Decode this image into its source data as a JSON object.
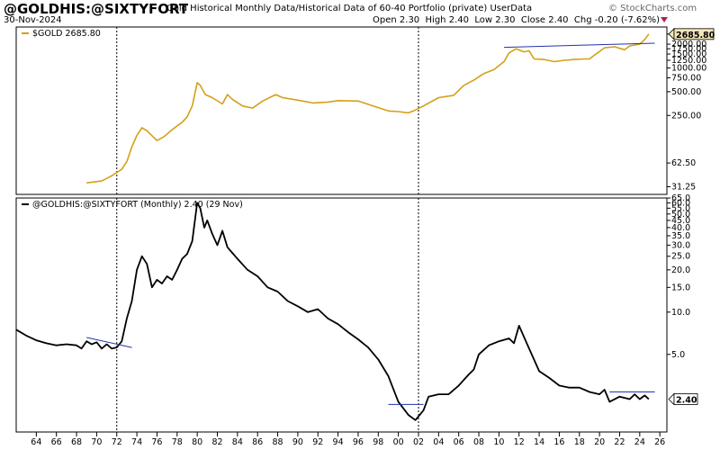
{
  "header": {
    "ticker": "@GOLDHIS:@SIXTYFORT",
    "description": "Gold Historical Monthly Data/Historical Data of 60-40 Portfolio (private)",
    "source_tag": "UserData",
    "date": "30-Nov-2024",
    "open_label": "Open",
    "open": "2.30",
    "high_label": "High",
    "high": "2.40",
    "low_label": "Low",
    "low": "2.30",
    "close_label": "Close",
    "close": "2.40",
    "chg_label": "Chg",
    "chg": "-0.20 (-7.62%)",
    "brand": "© StockCharts.com"
  },
  "colors": {
    "gold": "#d4a017",
    "ratio": "#000000",
    "trend": "#2233aa",
    "marker": "#000000"
  },
  "chart_data": [
    {
      "type": "line",
      "legend": "$GOLD 2685.80",
      "last_value_label": "2685.80",
      "y_scale": "log",
      "ylim": [
        25,
        3300
      ],
      "y_ticks": [
        "2685.80",
        "2000.00",
        "1750.00",
        "1500.00",
        "1250.00",
        "1000.00",
        "750.00",
        "500.00",
        "250.00",
        "62.50",
        "31.25"
      ],
      "y_tick_values": [
        2685.8,
        2000,
        1750,
        1500,
        1250,
        1000,
        750,
        500,
        250,
        62.5,
        31.25
      ],
      "series": [
        {
          "x": [
            1969.0,
            1970.5,
            1971.5,
            1972.5,
            1973.0,
            1973.5,
            1974.0,
            1974.5,
            1975.0,
            1976.0,
            1976.7,
            1977.5,
            1978.5,
            1979.0,
            1979.5,
            1980.0,
            1980.3,
            1980.8,
            1981.5,
            1982.5,
            1983.0,
            1983.5,
            1984.5,
            1985.5,
            1986.5,
            1987.8,
            1988.5,
            1990.0,
            1991.5,
            1993.0,
            1994.0,
            1996.0,
            1997.5,
            1999.0,
            2000.0,
            2001.0,
            2001.5,
            2002.5,
            2004.0,
            2005.5,
            2006.5,
            2007.5,
            2008.5,
            2009.5,
            2010.5,
            2011.0,
            2011.7,
            2012.5,
            2013.0,
            2013.5,
            2014.5,
            2015.5,
            2016.5,
            2017.5,
            2018.5,
            2019.0,
            2019.5,
            2020.5,
            2021.5,
            2022.5,
            2023.0,
            2023.5,
            2024.0,
            2024.5,
            2024.9
          ],
          "y": [
            35,
            37,
            43,
            52,
            65,
            100,
            140,
            175,
            160,
            120,
            135,
            165,
            205,
            240,
            330,
            650,
            600,
            460,
            420,
            350,
            460,
            400,
            330,
            310,
            380,
            460,
            420,
            390,
            360,
            370,
            385,
            380,
            330,
            285,
            280,
            270,
            285,
            330,
            420,
            450,
            600,
            700,
            850,
            950,
            1200,
            1550,
            1750,
            1600,
            1650,
            1300,
            1280,
            1200,
            1250,
            1280,
            1300,
            1300,
            1450,
            1800,
            1850,
            1700,
            1900,
            1950,
            2000,
            2300,
            2685.8
          ]
        }
      ],
      "trendline": {
        "x": [
          2010.5,
          2025.5
        ],
        "y": [
          1820,
          2060
        ]
      }
    },
    {
      "type": "line",
      "legend": "@GOLDHIS:@SIXTYFORT (Monthly) 2.40 (29 Nov)",
      "last_value_label": "2.40",
      "y_scale": "log",
      "ylim": [
        1.4,
        65
      ],
      "y_ticks": [
        "65.0",
        "60.0",
        "55.0",
        "50.0",
        "45.0",
        "40.0",
        "35.0",
        "30.0",
        "25.0",
        "20.0",
        "15.0",
        "10.0",
        "5.0"
      ],
      "y_tick_values": [
        65,
        60,
        55,
        50,
        45,
        40,
        35,
        30,
        25,
        20,
        15,
        10,
        5
      ],
      "series": [
        {
          "x": [
            1962.0,
            1963.0,
            1964.0,
            1965.0,
            1966.0,
            1967.0,
            1968.0,
            1968.5,
            1969.0,
            1969.5,
            1970.0,
            1970.5,
            1971.0,
            1971.5,
            1972.0,
            1972.5,
            1973.0,
            1973.5,
            1974.0,
            1974.5,
            1975.0,
            1975.5,
            1976.0,
            1976.5,
            1977.0,
            1977.5,
            1978.0,
            1978.5,
            1979.0,
            1979.5,
            1980.0,
            1980.3,
            1980.7,
            1981.0,
            1981.5,
            1982.0,
            1982.5,
            1983.0,
            1984.0,
            1985.0,
            1986.0,
            1987.0,
            1988.0,
            1989.0,
            1990.0,
            1991.0,
            1992.0,
            1993.0,
            1994.0,
            1995.0,
            1996.0,
            1997.0,
            1998.0,
            1999.0,
            2000.0,
            2001.0,
            2001.7,
            2002.5,
            2003.0,
            2004.0,
            2005.0,
            2006.0,
            2007.0,
            2007.5,
            2008.0,
            2009.0,
            2010.0,
            2011.0,
            2011.5,
            2012.0,
            2013.0,
            2014.0,
            2015.0,
            2016.0,
            2017.0,
            2018.0,
            2019.0,
            2020.0,
            2020.5,
            2021.0,
            2022.0,
            2023.0,
            2023.5,
            2024.0,
            2024.5,
            2024.9
          ],
          "y": [
            7.5,
            6.8,
            6.3,
            6.0,
            5.8,
            5.9,
            5.8,
            5.5,
            6.2,
            5.9,
            6.1,
            5.5,
            5.9,
            5.5,
            5.6,
            6.2,
            9.0,
            12,
            20,
            25,
            22,
            15,
            17,
            16,
            18,
            17,
            20,
            24,
            26,
            32,
            60,
            55,
            40,
            45,
            36,
            30,
            38,
            29,
            24,
            20,
            18,
            15,
            14,
            12,
            11,
            10,
            10.5,
            9,
            8.2,
            7.2,
            6.4,
            5.6,
            4.6,
            3.5,
            2.3,
            1.85,
            1.7,
            2.0,
            2.5,
            2.6,
            2.6,
            3.0,
            3.6,
            3.9,
            5.0,
            5.8,
            6.2,
            6.5,
            6.0,
            8.0,
            5.5,
            3.8,
            3.4,
            3.0,
            2.9,
            2.9,
            2.7,
            2.6,
            2.8,
            2.3,
            2.5,
            2.4,
            2.6,
            2.4,
            2.55,
            2.4
          ]
        }
      ],
      "trendlines": [
        {
          "x": [
            1969.0,
            1973.5
          ],
          "y": [
            6.6,
            5.6
          ]
        },
        {
          "x": [
            1999.0,
            2002.5
          ],
          "y": [
            2.2,
            2.2
          ]
        },
        {
          "x": [
            2021.0,
            2025.5
          ],
          "y": [
            2.7,
            2.7
          ]
        }
      ]
    }
  ],
  "x_axis": {
    "ticks": [
      "64",
      "66",
      "68",
      "70",
      "72",
      "74",
      "76",
      "78",
      "80",
      "82",
      "84",
      "86",
      "88",
      "90",
      "92",
      "94",
      "96",
      "98",
      "00",
      "02",
      "04",
      "06",
      "08",
      "10",
      "12",
      "14",
      "16",
      "18",
      "20",
      "22",
      "24",
      "26"
    ],
    "tick_years": [
      1964,
      1966,
      1968,
      1970,
      1972,
      1974,
      1976,
      1978,
      1980,
      1982,
      1984,
      1986,
      1988,
      1990,
      1992,
      1994,
      1996,
      1998,
      2000,
      2002,
      2004,
      2006,
      2008,
      2010,
      2012,
      2014,
      2016,
      2018,
      2020,
      2022,
      2024,
      2026
    ],
    "markers": [
      1972.0,
      2002.0
    ]
  }
}
